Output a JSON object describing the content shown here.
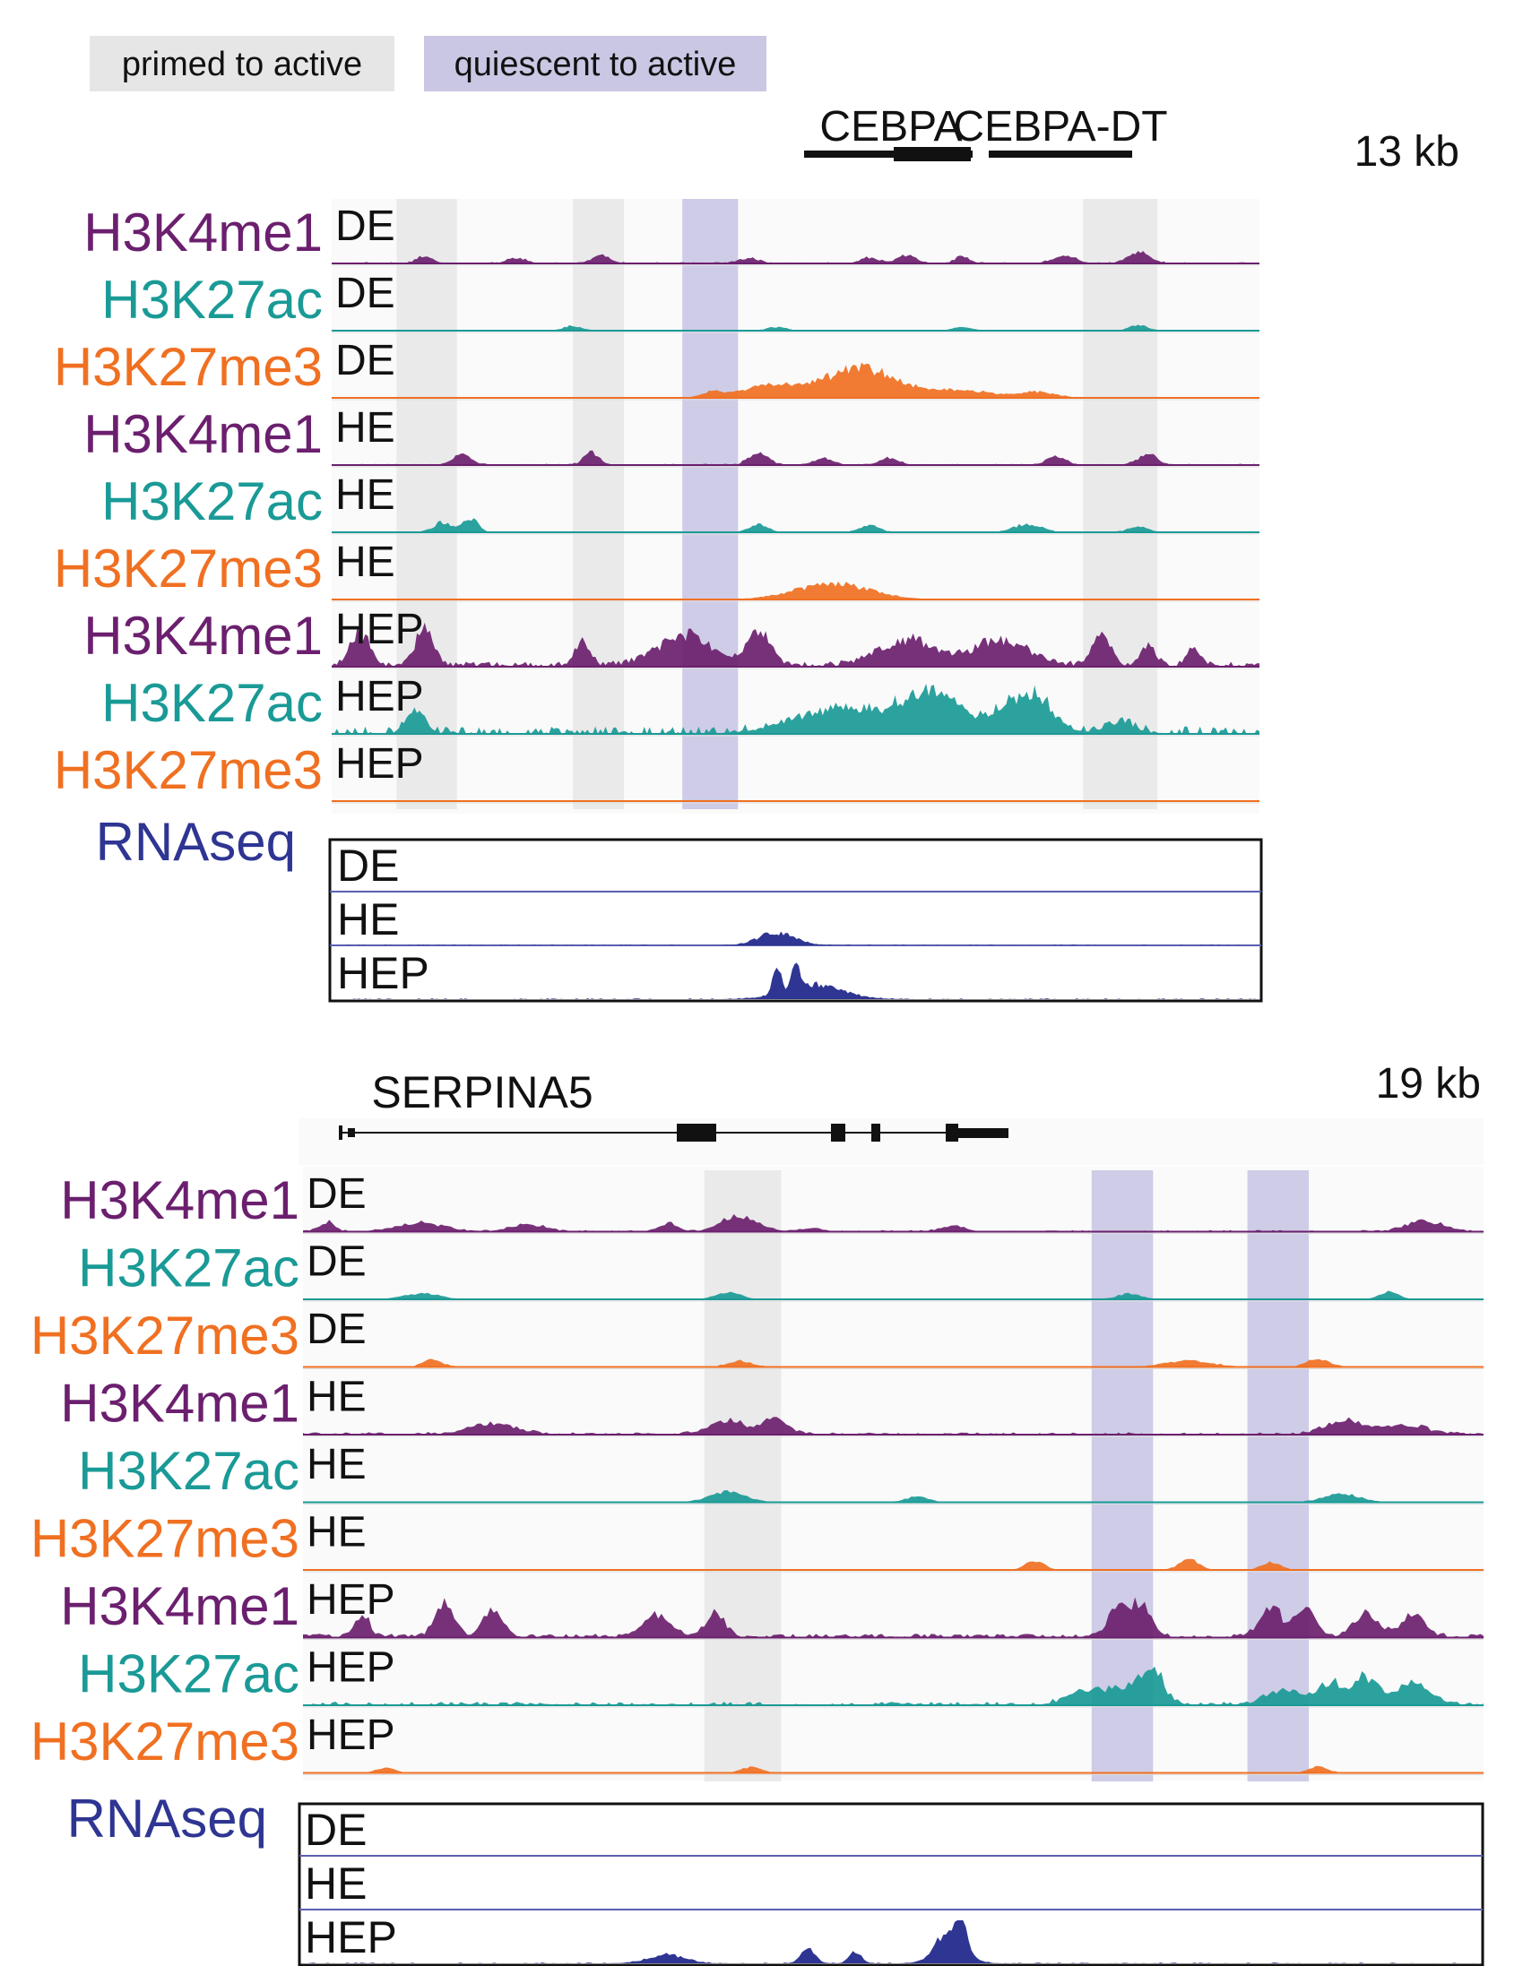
{
  "legend": {
    "primed": {
      "label": "primed to active",
      "color": "#e6e6e6"
    },
    "quiescent": {
      "label": "quiescent to active",
      "color": "#c9c7e3"
    }
  },
  "colors": {
    "H3K4me1": "#6b1f6e",
    "H3K27ac": "#1a9a96",
    "H3K27me3": "#f07022",
    "RNAseq": "#2e3592",
    "text": "#111111"
  },
  "panels": [
    {
      "id": "cebpa",
      "scale": "13 kb",
      "genes": [
        {
          "name": "CEBPA"
        },
        {
          "name": "CEBPA-DT"
        }
      ],
      "highlights": [
        {
          "kind": "primed",
          "start": 0.07,
          "end": 0.135
        },
        {
          "kind": "primed",
          "start": 0.26,
          "end": 0.315
        },
        {
          "kind": "quiescent",
          "start": 0.378,
          "end": 0.438
        },
        {
          "kind": "primed",
          "start": 0.81,
          "end": 0.89
        }
      ],
      "tracks": [
        {
          "mark": "H3K4me1",
          "stage": "DE",
          "amp": 0.45,
          "base": 0.05,
          "density": 0.6,
          "peaks": [
            [
              0.1,
              0.008,
              0.35
            ],
            [
              0.2,
              0.01,
              0.25
            ],
            [
              0.29,
              0.01,
              0.35
            ],
            [
              0.45,
              0.01,
              0.25
            ],
            [
              0.58,
              0.01,
              0.25
            ],
            [
              0.62,
              0.01,
              0.35
            ],
            [
              0.68,
              0.008,
              0.3
            ],
            [
              0.79,
              0.012,
              0.35
            ],
            [
              0.87,
              0.012,
              0.5
            ]
          ]
        },
        {
          "mark": "H3K27ac",
          "stage": "DE",
          "amp": 0.25,
          "base": 0.02,
          "density": 0.5,
          "peaks": [
            [
              0.26,
              0.01,
              0.4
            ],
            [
              0.48,
              0.01,
              0.3
            ],
            [
              0.68,
              0.01,
              0.3
            ],
            [
              0.87,
              0.01,
              0.45
            ]
          ]
        },
        {
          "mark": "H3K27me3",
          "stage": "DE",
          "amp": 0.6,
          "base": 0.02,
          "density": 0.4,
          "peaks": [
            [
              0.41,
              0.01,
              0.2
            ],
            [
              0.47,
              0.03,
              0.4
            ],
            [
              0.57,
              0.04,
              1.0
            ],
            [
              0.68,
              0.03,
              0.25
            ],
            [
              0.76,
              0.02,
              0.2
            ]
          ]
        },
        {
          "mark": "H3K4me1",
          "stage": "HE",
          "amp": 0.45,
          "base": 0.05,
          "density": 0.6,
          "peaks": [
            [
              0.14,
              0.01,
              0.45
            ],
            [
              0.28,
              0.008,
              0.6
            ],
            [
              0.46,
              0.01,
              0.55
            ],
            [
              0.53,
              0.01,
              0.3
            ],
            [
              0.6,
              0.01,
              0.3
            ],
            [
              0.78,
              0.01,
              0.4
            ],
            [
              0.88,
              0.01,
              0.5
            ]
          ]
        },
        {
          "mark": "H3K27ac",
          "stage": "HE",
          "amp": 0.4,
          "base": 0.03,
          "density": 0.5,
          "peaks": [
            [
              0.12,
              0.01,
              0.5
            ],
            [
              0.15,
              0.008,
              0.7
            ],
            [
              0.46,
              0.01,
              0.4
            ],
            [
              0.58,
              0.01,
              0.35
            ],
            [
              0.75,
              0.015,
              0.4
            ],
            [
              0.87,
              0.01,
              0.3
            ]
          ]
        },
        {
          "mark": "H3K27me3",
          "stage": "HE",
          "amp": 0.4,
          "base": 0.02,
          "density": 0.3,
          "peaks": [
            [
              0.54,
              0.04,
              0.8
            ]
          ]
        },
        {
          "mark": "H3K4me1",
          "stage": "HEP",
          "amp": 0.85,
          "base": 0.1,
          "density": 0.8,
          "peaks": [
            [
              0.03,
              0.01,
              0.8
            ],
            [
              0.1,
              0.01,
              0.85
            ],
            [
              0.27,
              0.008,
              0.6
            ],
            [
              0.38,
              0.03,
              0.7
            ],
            [
              0.46,
              0.012,
              0.8
            ],
            [
              0.62,
              0.03,
              0.6
            ],
            [
              0.72,
              0.03,
              0.6
            ],
            [
              0.83,
              0.01,
              0.7
            ],
            [
              0.88,
              0.008,
              0.5
            ],
            [
              0.93,
              0.008,
              0.4
            ]
          ]
        },
        {
          "mark": "H3K27ac",
          "stage": "HEP",
          "amp": 0.85,
          "base": 0.15,
          "density": 0.5,
          "peaks": [
            [
              0.09,
              0.01,
              0.55
            ],
            [
              0.55,
              0.05,
              0.6
            ],
            [
              0.65,
              0.03,
              0.95
            ],
            [
              0.75,
              0.025,
              0.95
            ],
            [
              0.85,
              0.015,
              0.3
            ]
          ]
        },
        {
          "mark": "H3K27me3",
          "stage": "HEP",
          "amp": 0.15,
          "base": 0.05,
          "density": 0.3,
          "peaks": []
        }
      ],
      "rnaseq": {
        "label": "RNAseq",
        "tracks": [
          {
            "stage": "DE",
            "peaks": []
          },
          {
            "stage": "HE",
            "peaks": [
              [
                0.48,
                0.02,
                0.35
              ]
            ]
          },
          {
            "stage": "HEP",
            "peaks": [
              [
                0.48,
                0.004,
                0.9
              ],
              [
                0.5,
                0.004,
                0.85
              ],
              [
                0.52,
                0.03,
                0.4
              ]
            ]
          }
        ]
      }
    },
    {
      "id": "serpina5",
      "scale": "19 kb",
      "genes": [
        {
          "name": "SERPINA5"
        }
      ],
      "highlights": [
        {
          "kind": "primed",
          "start": 0.34,
          "end": 0.405
        },
        {
          "kind": "quiescent",
          "start": 0.668,
          "end": 0.72
        },
        {
          "kind": "quiescent",
          "start": 0.8,
          "end": 0.852
        }
      ],
      "tracks": [
        {
          "mark": "H3K4me1",
          "stage": "DE",
          "amp": 0.55,
          "base": 0.05,
          "density": 0.6,
          "peaks": [
            [
              0.02,
              0.006,
              0.35
            ],
            [
              0.1,
              0.02,
              0.3
            ],
            [
              0.19,
              0.015,
              0.25
            ],
            [
              0.31,
              0.008,
              0.3
            ],
            [
              0.37,
              0.015,
              0.6
            ],
            [
              0.43,
              0.01,
              0.1
            ],
            [
              0.55,
              0.01,
              0.2
            ],
            [
              0.95,
              0.015,
              0.4
            ]
          ]
        },
        {
          "mark": "H3K27ac",
          "stage": "DE",
          "amp": 0.3,
          "base": 0.02,
          "density": 0.5,
          "peaks": [
            [
              0.1,
              0.015,
              0.4
            ],
            [
              0.36,
              0.01,
              0.5
            ],
            [
              0.7,
              0.01,
              0.4
            ],
            [
              0.92,
              0.008,
              0.5
            ]
          ]
        },
        {
          "mark": "H3K27me3",
          "stage": "DE",
          "amp": 0.3,
          "base": 0.03,
          "density": 0.5,
          "peaks": [
            [
              0.11,
              0.008,
              0.5
            ],
            [
              0.37,
              0.01,
              0.4
            ],
            [
              0.75,
              0.02,
              0.4
            ],
            [
              0.86,
              0.01,
              0.5
            ]
          ]
        },
        {
          "mark": "H3K4me1",
          "stage": "HE",
          "amp": 0.5,
          "base": 0.08,
          "density": 0.7,
          "peaks": [
            [
              0.16,
              0.02,
              0.45
            ],
            [
              0.36,
              0.015,
              0.55
            ],
            [
              0.4,
              0.01,
              0.7
            ],
            [
              0.88,
              0.015,
              0.55
            ],
            [
              0.93,
              0.02,
              0.4
            ]
          ]
        },
        {
          "mark": "H3K27ac",
          "stage": "HE",
          "amp": 0.35,
          "base": 0.02,
          "density": 0.5,
          "peaks": [
            [
              0.36,
              0.015,
              0.6
            ],
            [
              0.52,
              0.01,
              0.3
            ],
            [
              0.88,
              0.015,
              0.5
            ]
          ]
        },
        {
          "mark": "H3K27me3",
          "stage": "HE",
          "amp": 0.3,
          "base": 0.02,
          "density": 0.4,
          "peaks": [
            [
              0.62,
              0.008,
              0.6
            ],
            [
              0.75,
              0.008,
              0.7
            ],
            [
              0.82,
              0.008,
              0.5
            ]
          ]
        },
        {
          "mark": "H3K4me1",
          "stage": "HEP",
          "amp": 0.8,
          "base": 0.08,
          "density": 0.8,
          "peaks": [
            [
              0.05,
              0.006,
              0.6
            ],
            [
              0.12,
              0.008,
              0.8
            ],
            [
              0.16,
              0.008,
              0.7
            ],
            [
              0.3,
              0.012,
              0.55
            ],
            [
              0.35,
              0.008,
              0.6
            ],
            [
              0.69,
              0.008,
              0.8
            ],
            [
              0.71,
              0.008,
              0.85
            ],
            [
              0.82,
              0.01,
              0.7
            ],
            [
              0.85,
              0.008,
              0.8
            ],
            [
              0.9,
              0.01,
              0.6
            ],
            [
              0.94,
              0.01,
              0.6
            ]
          ]
        },
        {
          "mark": "H3K27ac",
          "stage": "HEP",
          "amp": 0.75,
          "base": 0.08,
          "density": 0.6,
          "peaks": [
            [
              0.66,
              0.015,
              0.3
            ],
            [
              0.7,
              0.02,
              0.5
            ],
            [
              0.72,
              0.008,
              0.8
            ],
            [
              0.83,
              0.015,
              0.4
            ],
            [
              0.87,
              0.01,
              0.6
            ],
            [
              0.9,
              0.01,
              0.75
            ],
            [
              0.94,
              0.015,
              0.6
            ]
          ]
        },
        {
          "mark": "H3K27me3",
          "stage": "HEP",
          "amp": 0.25,
          "base": 0.03,
          "density": 0.4,
          "peaks": [
            [
              0.07,
              0.008,
              0.4
            ],
            [
              0.38,
              0.008,
              0.5
            ],
            [
              0.86,
              0.008,
              0.5
            ]
          ]
        }
      ],
      "rnaseq": {
        "label": "RNAseq",
        "tracks": [
          {
            "stage": "DE",
            "peaks": []
          },
          {
            "stage": "HE",
            "peaks": []
          },
          {
            "stage": "HEP",
            "peaks": [
              [
                0.31,
                0.015,
                0.25
              ],
              [
                0.43,
                0.006,
                0.4
              ],
              [
                0.47,
                0.005,
                0.35
              ],
              [
                0.55,
                0.012,
                0.9
              ],
              [
                0.56,
                0.004,
                1.0
              ]
            ]
          }
        ]
      }
    }
  ]
}
